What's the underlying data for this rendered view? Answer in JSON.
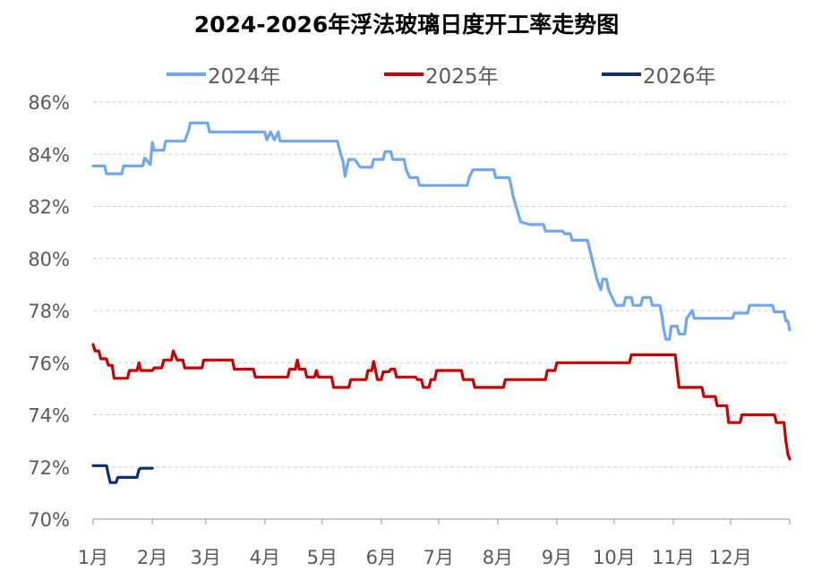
{
  "chart_data": {
    "type": "line",
    "title": "2024-2026年浮法玻璃日度开工率走势图",
    "xlabel": "",
    "ylabel": "",
    "x_unit": "day of year",
    "categories": [
      "1月",
      "2月",
      "3月",
      "4月",
      "5月",
      "6月",
      "7月",
      "8月",
      "9月",
      "10月",
      "11月",
      "12月"
    ],
    "category_start_days": [
      0,
      31,
      59,
      90,
      120,
      151,
      181,
      212,
      243,
      273,
      304,
      334
    ],
    "x_range": [
      0,
      365
    ],
    "ylim": [
      70,
      86
    ],
    "yticks": [
      70,
      72,
      74,
      76,
      78,
      80,
      82,
      84,
      86
    ],
    "ytick_format": "%",
    "grid": "horizontal dashed",
    "legend_position": "top",
    "series": [
      {
        "name": "2024年",
        "color": "#6fa8f0",
        "points": [
          [
            0,
            83.55
          ],
          [
            6,
            83.55
          ],
          [
            7,
            83.25
          ],
          [
            15,
            83.25
          ],
          [
            16,
            83.55
          ],
          [
            26,
            83.55
          ],
          [
            27,
            83.85
          ],
          [
            30,
            83.6
          ],
          [
            31,
            84.45
          ],
          [
            32,
            84.15
          ],
          [
            37,
            84.15
          ],
          [
            38,
            84.5
          ],
          [
            48,
            84.5
          ],
          [
            50,
            84.9
          ],
          [
            51,
            85.2
          ],
          [
            60,
            85.2
          ],
          [
            61,
            84.85
          ],
          [
            90,
            84.85
          ],
          [
            91,
            84.55
          ],
          [
            93,
            84.85
          ],
          [
            95,
            84.55
          ],
          [
            97,
            84.85
          ],
          [
            98,
            84.5
          ],
          [
            128,
            84.5
          ],
          [
            129,
            84.2
          ],
          [
            131,
            83.7
          ],
          [
            132,
            83.15
          ],
          [
            133,
            83.5
          ],
          [
            134,
            83.8
          ],
          [
            137,
            83.8
          ],
          [
            140,
            83.5
          ],
          [
            146,
            83.5
          ],
          [
            147,
            83.8
          ],
          [
            152,
            83.8
          ],
          [
            153,
            84.1
          ],
          [
            156,
            84.1
          ],
          [
            157,
            83.8
          ],
          [
            163,
            83.8
          ],
          [
            164,
            83.4
          ],
          [
            166,
            83.1
          ],
          [
            170,
            83.1
          ],
          [
            171,
            82.8
          ],
          [
            196,
            82.8
          ],
          [
            197,
            83.1
          ],
          [
            199,
            83.4
          ],
          [
            210,
            83.4
          ],
          [
            211,
            83.1
          ],
          [
            218,
            83.1
          ],
          [
            219,
            82.8
          ],
          [
            220,
            82.4
          ],
          [
            222,
            81.9
          ],
          [
            224,
            81.4
          ],
          [
            229,
            81.3
          ],
          [
            236,
            81.3
          ],
          [
            237,
            81.05
          ],
          [
            246,
            81.05
          ],
          [
            247,
            80.95
          ],
          [
            250,
            80.95
          ],
          [
            251,
            80.7
          ],
          [
            259,
            80.7
          ],
          [
            260,
            80.4
          ],
          [
            262,
            79.8
          ],
          [
            264,
            79.2
          ],
          [
            266,
            78.8
          ],
          [
            267,
            79.2
          ],
          [
            269,
            79.2
          ],
          [
            270,
            78.8
          ],
          [
            272,
            78.5
          ],
          [
            274,
            78.2
          ],
          [
            278,
            78.2
          ],
          [
            279,
            78.5
          ],
          [
            282,
            78.5
          ],
          [
            283,
            78.2
          ],
          [
            287,
            78.2
          ],
          [
            288,
            78.5
          ],
          [
            292,
            78.5
          ],
          [
            293,
            78.2
          ],
          [
            297,
            78.2
          ],
          [
            298,
            77.8
          ],
          [
            299,
            77.3
          ],
          [
            300,
            76.9
          ],
          [
            302,
            76.9
          ],
          [
            303,
            77.4
          ],
          [
            306,
            77.4
          ],
          [
            307,
            77.1
          ],
          [
            310,
            77.1
          ],
          [
            311,
            77.7
          ],
          [
            314,
            78.0
          ],
          [
            315,
            77.7
          ],
          [
            335,
            77.7
          ],
          [
            336,
            77.9
          ],
          [
            343,
            77.9
          ],
          [
            344,
            78.2
          ],
          [
            356,
            78.2
          ],
          [
            357,
            77.95
          ],
          [
            362,
            77.95
          ],
          [
            363,
            77.6
          ],
          [
            364,
            77.6
          ],
          [
            365,
            77.25
          ]
        ]
      },
      {
        "name": "2025年",
        "color": "#cc0000",
        "points": [
          [
            0,
            76.7
          ],
          [
            1,
            76.45
          ],
          [
            3,
            76.45
          ],
          [
            4,
            76.15
          ],
          [
            7,
            76.15
          ],
          [
            8,
            75.9
          ],
          [
            10,
            75.9
          ],
          [
            11,
            75.4
          ],
          [
            18,
            75.4
          ],
          [
            19,
            75.7
          ],
          [
            23,
            75.7
          ],
          [
            24,
            76.0
          ],
          [
            25,
            75.7
          ],
          [
            31,
            75.7
          ],
          [
            32,
            75.8
          ],
          [
            36,
            75.8
          ],
          [
            37,
            76.1
          ],
          [
            41,
            76.1
          ],
          [
            42,
            76.45
          ],
          [
            44,
            76.1
          ],
          [
            47,
            76.1
          ],
          [
            48,
            75.8
          ],
          [
            57,
            75.8
          ],
          [
            58,
            76.1
          ],
          [
            73,
            76.1
          ],
          [
            74,
            75.75
          ],
          [
            84,
            75.75
          ],
          [
            85,
            75.45
          ],
          [
            102,
            75.45
          ],
          [
            103,
            75.75
          ],
          [
            106,
            75.75
          ],
          [
            107,
            76.1
          ],
          [
            108,
            75.75
          ],
          [
            111,
            75.75
          ],
          [
            112,
            75.45
          ],
          [
            116,
            75.45
          ],
          [
            117,
            75.7
          ],
          [
            118,
            75.45
          ],
          [
            125,
            75.45
          ],
          [
            126,
            75.05
          ],
          [
            134,
            75.05
          ],
          [
            135,
            75.35
          ],
          [
            143,
            75.35
          ],
          [
            144,
            75.7
          ],
          [
            146,
            75.7
          ],
          [
            147,
            76.05
          ],
          [
            148,
            75.7
          ],
          [
            149,
            75.35
          ],
          [
            151,
            75.35
          ],
          [
            152,
            75.65
          ],
          [
            155,
            75.65
          ],
          [
            156,
            75.75
          ],
          [
            158,
            75.75
          ],
          [
            159,
            75.45
          ],
          [
            169,
            75.45
          ],
          [
            170,
            75.35
          ],
          [
            172,
            75.35
          ],
          [
            173,
            75.05
          ],
          [
            176,
            75.05
          ],
          [
            177,
            75.35
          ],
          [
            179,
            75.35
          ],
          [
            180,
            75.7
          ],
          [
            193,
            75.7
          ],
          [
            194,
            75.35
          ],
          [
            199,
            75.35
          ],
          [
            200,
            75.05
          ],
          [
            215,
            75.05
          ],
          [
            216,
            75.35
          ],
          [
            237,
            75.35
          ],
          [
            238,
            75.7
          ],
          [
            242,
            75.7
          ],
          [
            243,
            76.0
          ],
          [
            281,
            76.0
          ],
          [
            282,
            76.3
          ],
          [
            305,
            76.3
          ],
          [
            307,
            75.05
          ],
          [
            319,
            75.05
          ],
          [
            320,
            74.7
          ],
          [
            326,
            74.7
          ],
          [
            327,
            74.35
          ],
          [
            332,
            74.35
          ],
          [
            333,
            73.7
          ],
          [
            339,
            73.7
          ],
          [
            340,
            74.0
          ],
          [
            357,
            74.0
          ],
          [
            358,
            73.7
          ],
          [
            362,
            73.7
          ],
          [
            363,
            73.0
          ],
          [
            364,
            72.5
          ],
          [
            365,
            72.3
          ]
        ]
      },
      {
        "name": "2026年",
        "color": "#0d2f73",
        "points": [
          [
            0,
            72.05
          ],
          [
            7,
            72.05
          ],
          [
            8,
            71.7
          ],
          [
            9,
            71.4
          ],
          [
            12,
            71.4
          ],
          [
            13,
            71.6
          ],
          [
            23,
            71.6
          ],
          [
            24,
            71.9
          ],
          [
            25,
            71.95
          ],
          [
            31,
            71.95
          ]
        ]
      }
    ]
  }
}
